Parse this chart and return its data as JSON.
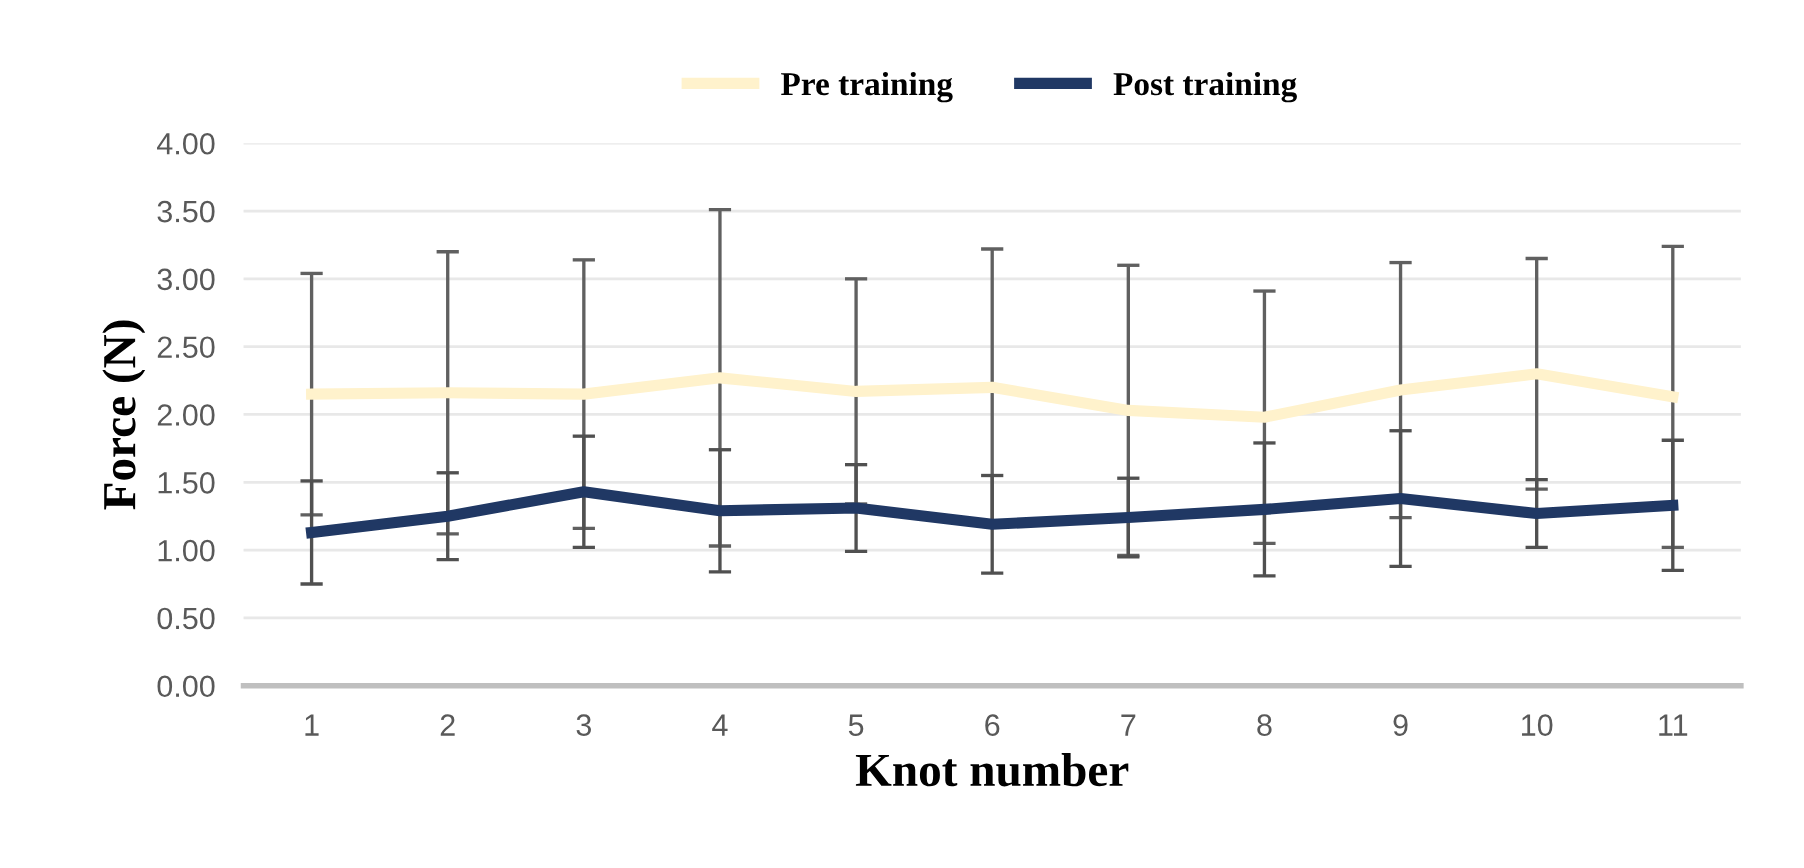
{
  "chart_data": {
    "type": "line",
    "xlabel": "Knot number",
    "ylabel": "Force (N)",
    "categories": [
      "1",
      "2",
      "3",
      "4",
      "5",
      "6",
      "7",
      "8",
      "9",
      "10",
      "11"
    ],
    "series": [
      {
        "name": "Pre training",
        "color": "#fff2cc",
        "values": [
          2.15,
          2.16,
          2.15,
          2.27,
          2.17,
          2.2,
          2.03,
          1.98,
          2.18,
          2.3,
          2.13
        ],
        "errors": [
          0.89,
          1.04,
          0.99,
          1.24,
          0.83,
          1.02,
          1.07,
          0.93,
          0.94,
          0.85,
          1.11
        ]
      },
      {
        "name": "Post training",
        "color": "#203864",
        "values": [
          1.13,
          1.25,
          1.43,
          1.29,
          1.31,
          1.19,
          1.24,
          1.3,
          1.38,
          1.27,
          1.33
        ],
        "errors": [
          0.38,
          0.32,
          0.41,
          0.45,
          0.32,
          0.36,
          0.29,
          0.49,
          0.5,
          0.25,
          0.48
        ]
      }
    ],
    "ylim": [
      0,
      4
    ],
    "yticks": [
      {
        "value": 0,
        "label": "0.00"
      },
      {
        "value": 0.5,
        "label": "0.50"
      },
      {
        "value": 1,
        "label": "1.00"
      },
      {
        "value": 1.5,
        "label": "1.50"
      },
      {
        "value": 2,
        "label": "2.00"
      },
      {
        "value": 2.5,
        "label": "2.50"
      },
      {
        "value": 3,
        "label": "3.00"
      },
      {
        "value": 3.5,
        "label": "3.50"
      },
      {
        "value": 4,
        "label": "4.00"
      }
    ],
    "grid": "y",
    "legend": "top",
    "marker": "none",
    "line_style": "solid"
  }
}
